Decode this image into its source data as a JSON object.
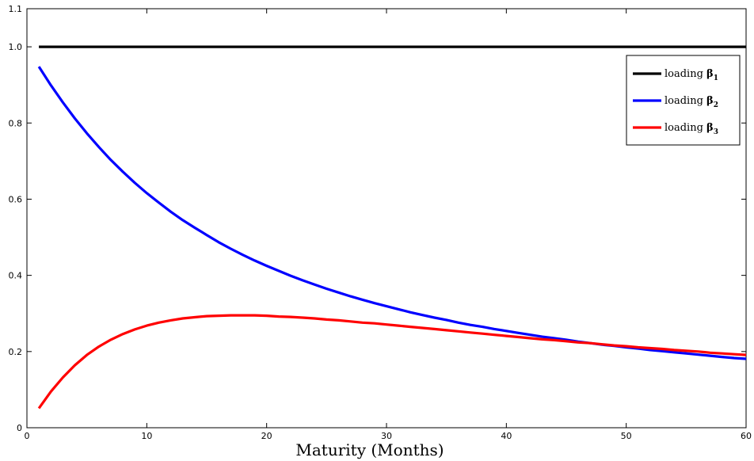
{
  "chart_data": {
    "type": "line",
    "xlabel": "Maturity (Months)",
    "ylabel": "",
    "title": "",
    "xlim": [
      0,
      60
    ],
    "ylim": [
      0,
      1.1
    ],
    "xticks": [
      0,
      10,
      20,
      30,
      40,
      50,
      60
    ],
    "yticks": [
      0,
      0.2,
      0.4,
      0.6,
      0.8,
      1.0,
      1.1
    ],
    "ytick_labels": [
      "0",
      "0.2",
      "0.4",
      "0.6",
      "0.8",
      "1.0",
      "1.1"
    ],
    "grid": false,
    "legend_position": "top-right",
    "x": [
      1,
      2,
      3,
      4,
      5,
      6,
      7,
      8,
      9,
      10,
      11,
      12,
      13,
      14,
      15,
      16,
      17,
      18,
      19,
      20,
      21,
      22,
      23,
      24,
      25,
      26,
      27,
      28,
      29,
      30,
      31,
      32,
      33,
      34,
      35,
      36,
      37,
      38,
      39,
      40,
      41,
      42,
      43,
      44,
      45,
      46,
      47,
      48,
      49,
      50,
      51,
      52,
      53,
      54,
      55,
      56,
      57,
      58,
      59,
      60
    ],
    "series": [
      {
        "name": "loading",
        "subscript": "1",
        "color": "#000000",
        "values": [
          1,
          1,
          1,
          1,
          1,
          1,
          1,
          1,
          1,
          1,
          1,
          1,
          1,
          1,
          1,
          1,
          1,
          1,
          1,
          1,
          1,
          1,
          1,
          1,
          1,
          1,
          1,
          1,
          1,
          1,
          1,
          1,
          1,
          1,
          1,
          1,
          1,
          1,
          1,
          1,
          1,
          1,
          1,
          1,
          1,
          1,
          1,
          1,
          1,
          1,
          1,
          1,
          1,
          1,
          1,
          1,
          1,
          1,
          1,
          1
        ]
      },
      {
        "name": "loading",
        "subscript": "2",
        "color": "#0000ff",
        "values": [
          0.948,
          0.899,
          0.854,
          0.812,
          0.773,
          0.737,
          0.703,
          0.672,
          0.643,
          0.616,
          0.591,
          0.567,
          0.545,
          0.525,
          0.506,
          0.487,
          0.47,
          0.454,
          0.439,
          0.425,
          0.412,
          0.399,
          0.387,
          0.376,
          0.365,
          0.355,
          0.345,
          0.336,
          0.327,
          0.319,
          0.311,
          0.303,
          0.296,
          0.289,
          0.283,
          0.276,
          0.27,
          0.265,
          0.259,
          0.254,
          0.249,
          0.244,
          0.239,
          0.235,
          0.231,
          0.226,
          0.222,
          0.218,
          0.215,
          0.211,
          0.208,
          0.204,
          0.201,
          0.198,
          0.195,
          0.192,
          0.189,
          0.186,
          0.183,
          0.181
        ]
      },
      {
        "name": "loading",
        "subscript": "3",
        "color": "#ff0000",
        "values": [
          0.051,
          0.095,
          0.132,
          0.164,
          0.191,
          0.213,
          0.231,
          0.246,
          0.258,
          0.268,
          0.276,
          0.282,
          0.287,
          0.29,
          0.293,
          0.294,
          0.295,
          0.295,
          0.295,
          0.294,
          0.292,
          0.291,
          0.289,
          0.287,
          0.284,
          0.282,
          0.279,
          0.276,
          0.274,
          0.271,
          0.268,
          0.265,
          0.262,
          0.259,
          0.256,
          0.253,
          0.25,
          0.247,
          0.244,
          0.241,
          0.238,
          0.235,
          0.232,
          0.23,
          0.227,
          0.224,
          0.222,
          0.219,
          0.216,
          0.214,
          0.211,
          0.209,
          0.207,
          0.204,
          0.202,
          0.2,
          0.197,
          0.195,
          0.193,
          0.191
        ]
      }
    ]
  }
}
